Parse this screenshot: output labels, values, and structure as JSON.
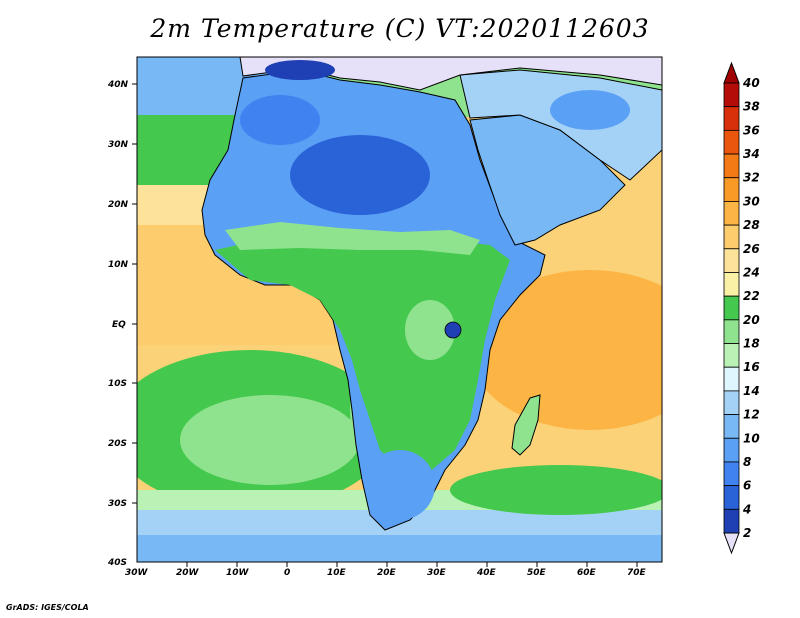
{
  "title": "2m Temperature (C) VT:2020112603",
  "credit": "GrADS: IGES/COLA",
  "map": {
    "lon_range": [
      -30,
      75
    ],
    "lat_range": [
      -40,
      45
    ],
    "lat_ticks": [
      "40N",
      "30N",
      "20N",
      "10N",
      "EQ",
      "10S",
      "20S",
      "30S",
      "40S"
    ],
    "lon_ticks": [
      "30W",
      "20W",
      "10W",
      "0",
      "10E",
      "20E",
      "30E",
      "40E",
      "50E",
      "60E",
      "70E"
    ],
    "variable": "2m temperature",
    "units": "C"
  },
  "colorbar": {
    "labels": [
      "2",
      "4",
      "6",
      "8",
      "10",
      "12",
      "14",
      "16",
      "18",
      "20",
      "22",
      "24",
      "26",
      "28",
      "30",
      "32",
      "34",
      "36",
      "38",
      "40"
    ],
    "colors": [
      "#1a237e",
      "#1e40b4",
      "#2a62d8",
      "#3f82f0",
      "#5aa0f5",
      "#78b8f5",
      "#a4d2f7",
      "#dff6ff",
      "#baf2b6",
      "#8fe38e",
      "#44c94e",
      "#fbf1a6",
      "#fde39a",
      "#fdcd6d",
      "#fcb444",
      "#fa9a26",
      "#f47a15",
      "#ea560e",
      "#d8300a",
      "#b40c08"
    ],
    "below_color": "#e6e0f8",
    "above_color": "#a00000"
  }
}
